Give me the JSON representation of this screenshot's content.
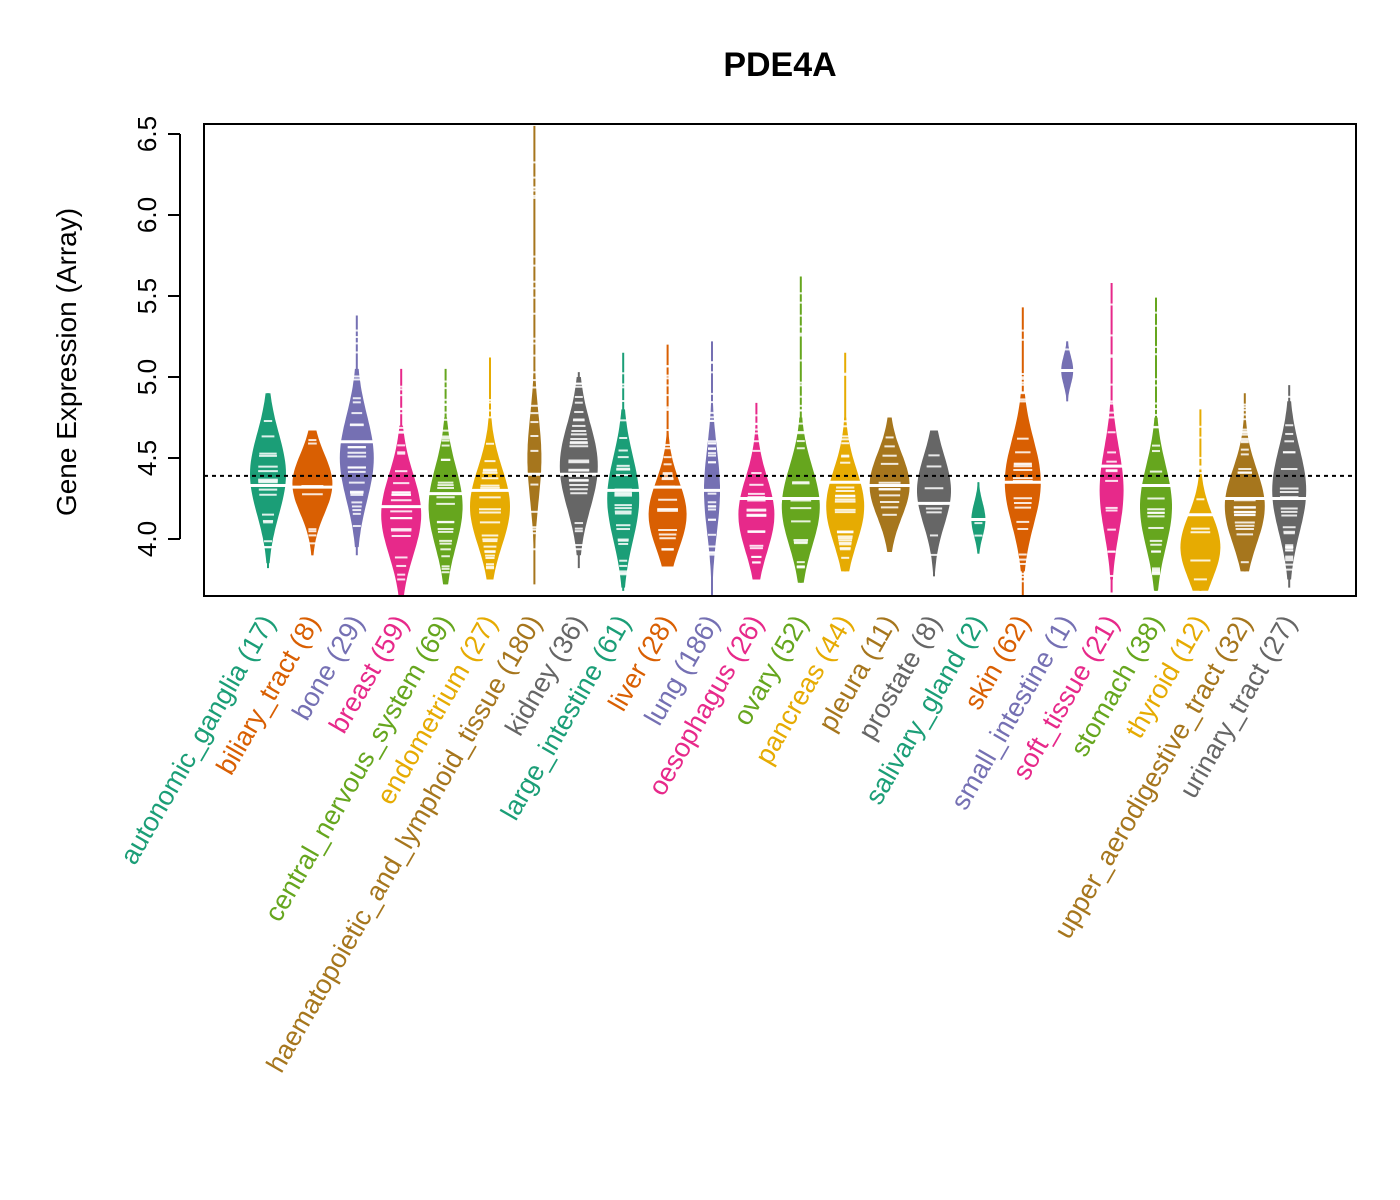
{
  "chart_data": {
    "type": "violin",
    "title": "PDE4A",
    "xlabel": "",
    "ylabel": "Gene Expression (Array)",
    "ylim": [
      3.65,
      6.55
    ],
    "yticks": [
      4.0,
      4.5,
      5.0,
      5.5,
      6.0,
      6.5
    ],
    "ytick_labels": [
      "4.0",
      "4.5",
      "5.0",
      "5.5",
      "6.0",
      "6.5"
    ],
    "reference_line": 4.39,
    "grid": false,
    "legend": "none",
    "categories": [
      {
        "name": "autonomic_ganglia",
        "n": 17,
        "label": "autonomic_ganglia (17)",
        "color": "#1B9E77",
        "min": 3.82,
        "max": 4.9,
        "median": 4.33,
        "mode": 4.4,
        "width": 0.9
      },
      {
        "name": "biliary_tract",
        "n": 8,
        "label": "biliary_tract (8)",
        "color": "#D95F02",
        "min": 3.9,
        "max": 4.67,
        "median": 4.32,
        "mode": 4.34,
        "width": 1.0
      },
      {
        "name": "bone",
        "n": 29,
        "label": "bone (29)",
        "color": "#7570B3",
        "min": 3.9,
        "max": 5.38,
        "median": 4.6,
        "mode": 4.5,
        "width": 0.85
      },
      {
        "name": "breast",
        "n": 59,
        "label": "breast (59)",
        "color": "#E7298A",
        "min": 3.65,
        "max": 5.05,
        "median": 4.2,
        "mode": 4.15,
        "width": 1.0
      },
      {
        "name": "central_nervous_system",
        "n": 69,
        "label": "central_nervous_system (69)",
        "color": "#66A61E",
        "min": 3.72,
        "max": 5.05,
        "median": 4.28,
        "mode": 4.2,
        "width": 0.85
      },
      {
        "name": "endometrium",
        "n": 27,
        "label": "endometrium (27)",
        "color": "#E6AB02",
        "min": 3.75,
        "max": 5.12,
        "median": 4.3,
        "mode": 4.2,
        "width": 1.0
      },
      {
        "name": "haematopoietic_and_lymphoid_tissue",
        "n": 180,
        "label": "haematopoietic_and_lymphoid_tissue (180)",
        "color": "#A6761D",
        "min": 3.72,
        "max": 6.55,
        "median": 4.4,
        "mode": 4.5,
        "width": 0.35
      },
      {
        "name": "kidney",
        "n": 36,
        "label": "kidney (36)",
        "color": "#666666",
        "min": 3.82,
        "max": 5.03,
        "median": 4.4,
        "mode": 4.45,
        "width": 0.95
      },
      {
        "name": "large_intestine",
        "n": 61,
        "label": "large_intestine (61)",
        "color": "#1B9E77",
        "min": 3.68,
        "max": 5.15,
        "median": 4.3,
        "mode": 4.25,
        "width": 0.8
      },
      {
        "name": "liver",
        "n": 28,
        "label": "liver (28)",
        "color": "#D95F02",
        "min": 3.83,
        "max": 5.2,
        "median": 4.32,
        "mode": 4.15,
        "width": 0.95
      },
      {
        "name": "lung",
        "n": 186,
        "label": "lung (186)",
        "color": "#7570B3",
        "min": 3.65,
        "max": 5.22,
        "median": 4.3,
        "mode": 4.3,
        "width": 0.4
      },
      {
        "name": "oesophagus",
        "n": 26,
        "label": "oesophagus (26)",
        "color": "#E7298A",
        "min": 3.75,
        "max": 4.84,
        "median": 4.25,
        "mode": 4.15,
        "width": 0.9
      },
      {
        "name": "ovary",
        "n": 52,
        "label": "ovary (52)",
        "color": "#66A61E",
        "min": 3.73,
        "max": 5.62,
        "median": 4.25,
        "mode": 4.2,
        "width": 0.95
      },
      {
        "name": "pancreas",
        "n": 44,
        "label": "pancreas (44)",
        "color": "#E6AB02",
        "min": 3.8,
        "max": 5.15,
        "median": 4.35,
        "mode": 4.2,
        "width": 0.95
      },
      {
        "name": "pleura",
        "n": 11,
        "label": "pleura (11)",
        "color": "#A6761D",
        "min": 3.92,
        "max": 4.75,
        "median": 4.33,
        "mode": 4.33,
        "width": 1.0
      },
      {
        "name": "prostate",
        "n": 8,
        "label": "prostate (8)",
        "color": "#666666",
        "min": 3.77,
        "max": 4.67,
        "median": 4.22,
        "mode": 4.3,
        "width": 0.85
      },
      {
        "name": "salivary_gland",
        "n": 2,
        "label": "salivary_gland (2)",
        "color": "#1B9E77",
        "min": 3.91,
        "max": 4.35,
        "median": 4.12,
        "mode": 4.12,
        "width": 0.35
      },
      {
        "name": "skin",
        "n": 62,
        "label": "skin (62)",
        "color": "#D95F02",
        "min": 3.65,
        "max": 5.43,
        "median": 4.35,
        "mode": 4.35,
        "width": 0.9
      },
      {
        "name": "small_intestine",
        "n": 1,
        "label": "small_intestine (1)",
        "color": "#7570B3",
        "min": 4.85,
        "max": 5.22,
        "median": 5.04,
        "mode": 5.04,
        "width": 0.3
      },
      {
        "name": "soft_tissue",
        "n": 21,
        "label": "soft_tissue (21)",
        "color": "#E7298A",
        "min": 3.67,
        "max": 5.58,
        "median": 4.45,
        "mode": 4.3,
        "width": 0.6
      },
      {
        "name": "stomach",
        "n": 38,
        "label": "stomach (38)",
        "color": "#66A61E",
        "min": 3.68,
        "max": 5.49,
        "median": 4.33,
        "mode": 4.2,
        "width": 0.8
      },
      {
        "name": "thyroid",
        "n": 12,
        "label": "thyroid (12)",
        "color": "#E6AB02",
        "min": 3.68,
        "max": 4.8,
        "median": 4.15,
        "mode": 3.95,
        "width": 1.0
      },
      {
        "name": "upper_aerodigestive_tract",
        "n": 32,
        "label": "upper_aerodigestive_tract (32)",
        "color": "#A6761D",
        "min": 3.8,
        "max": 4.9,
        "median": 4.25,
        "mode": 4.2,
        "width": 1.0
      },
      {
        "name": "urinary_tract",
        "n": 27,
        "label": "urinary_tract (27)",
        "color": "#666666",
        "min": 3.7,
        "max": 4.95,
        "median": 4.25,
        "mode": 4.3,
        "width": 0.85
      }
    ]
  }
}
